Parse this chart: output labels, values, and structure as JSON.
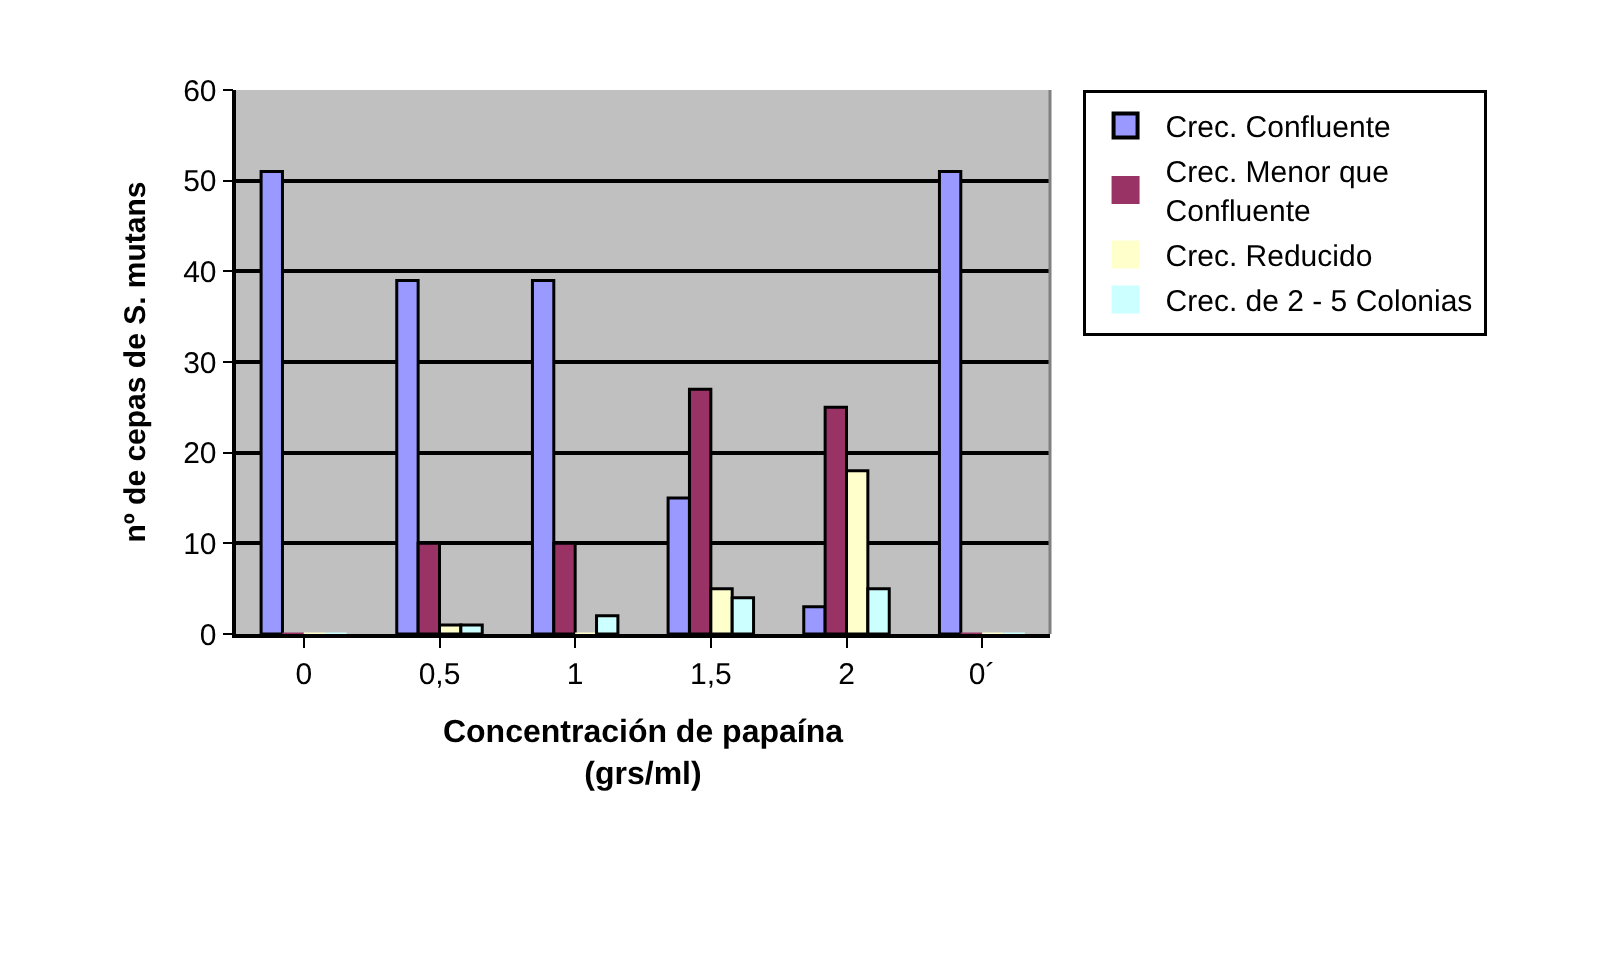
{
  "chart_data": {
    "type": "bar",
    "xlabel": "Concentración de papaína (grs/ml)",
    "ylabel": "nº de cepas de S. mutans",
    "categories": [
      "0",
      "0,5",
      "1",
      "1,5",
      "2",
      "0´"
    ],
    "series": [
      {
        "name": "Crec. Confluente",
        "color": "#9999ff",
        "values": [
          51,
          39,
          39,
          15,
          3,
          51
        ]
      },
      {
        "name": "Crec. Menor que Confluente",
        "color": "#993366",
        "values": [
          0,
          10,
          10,
          27,
          25,
          0
        ]
      },
      {
        "name": "Crec. Reducido",
        "color": "#ffffcc",
        "values": [
          0,
          1,
          0,
          5,
          18,
          0
        ]
      },
      {
        "name": "Crec. de 2 - 5 Colonias",
        "color": "#ccffff",
        "values": [
          0,
          1,
          2,
          4,
          5,
          0
        ]
      }
    ],
    "ylim": [
      0,
      60
    ],
    "yticks": [
      0,
      10,
      20,
      30,
      40,
      50,
      60
    ],
    "grid": "y",
    "legend": "right"
  }
}
